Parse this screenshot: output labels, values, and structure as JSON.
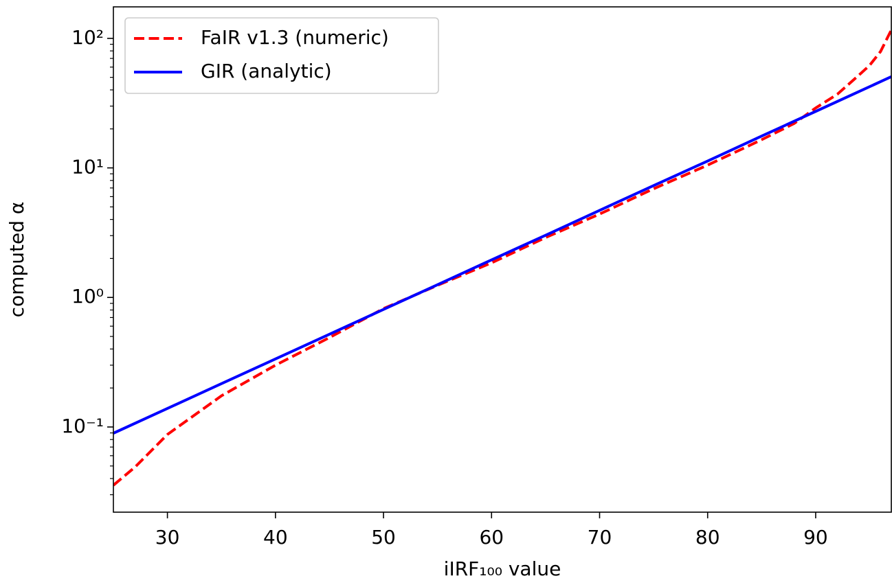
{
  "chart_data": {
    "type": "line",
    "xlabel": "iIRF₁₀₀ value",
    "ylabel": "computed α",
    "xlim": [
      25,
      97
    ],
    "ylim": [
      0.022,
      175
    ],
    "yscale": "log",
    "xticks": [
      30,
      40,
      50,
      60,
      70,
      80,
      90
    ],
    "yticks": [
      {
        "value": 0.1,
        "label": "10⁻¹"
      },
      {
        "value": 1,
        "label": "10⁰"
      },
      {
        "value": 10,
        "label": "10¹"
      },
      {
        "value": 100,
        "label": "10²"
      }
    ],
    "yminorticks": [
      0.03,
      0.04,
      0.05,
      0.06,
      0.07,
      0.08,
      0.09,
      0.2,
      0.3,
      0.4,
      0.5,
      0.6,
      0.7,
      0.8,
      0.9,
      2,
      3,
      4,
      5,
      6,
      7,
      8,
      9,
      20,
      30,
      40,
      50,
      60,
      70,
      80,
      90
    ],
    "legend": "upper left",
    "series": [
      {
        "name": "FaIR v1.3 (numeric)",
        "color": "#ff0000",
        "linestyle": "dashed",
        "x": [
          25,
          27,
          30,
          35,
          40,
          45,
          50,
          55,
          60,
          65,
          70,
          75,
          80,
          85,
          88,
          90,
          92,
          94,
          95,
          96,
          97
        ],
        "values": [
          0.0355,
          0.049,
          0.0875,
          0.174,
          0.3,
          0.49,
          0.82,
          1.24,
          1.85,
          2.9,
          4.4,
          6.9,
          10.5,
          16.5,
          22,
          29,
          37,
          52,
          62,
          79,
          116
        ]
      },
      {
        "name": "GIR (analytic)",
        "color": "#0000ff",
        "linestyle": "solid",
        "x": [
          25,
          30,
          35,
          40,
          45,
          50,
          55,
          60,
          65,
          70,
          75,
          80,
          85,
          90,
          95,
          97
        ],
        "values": [
          0.0895,
          0.139,
          0.216,
          0.335,
          0.52,
          0.808,
          1.254,
          1.95,
          3.02,
          4.7,
          7.3,
          11.3,
          17.6,
          27.3,
          42.4,
          50.6
        ]
      }
    ]
  }
}
